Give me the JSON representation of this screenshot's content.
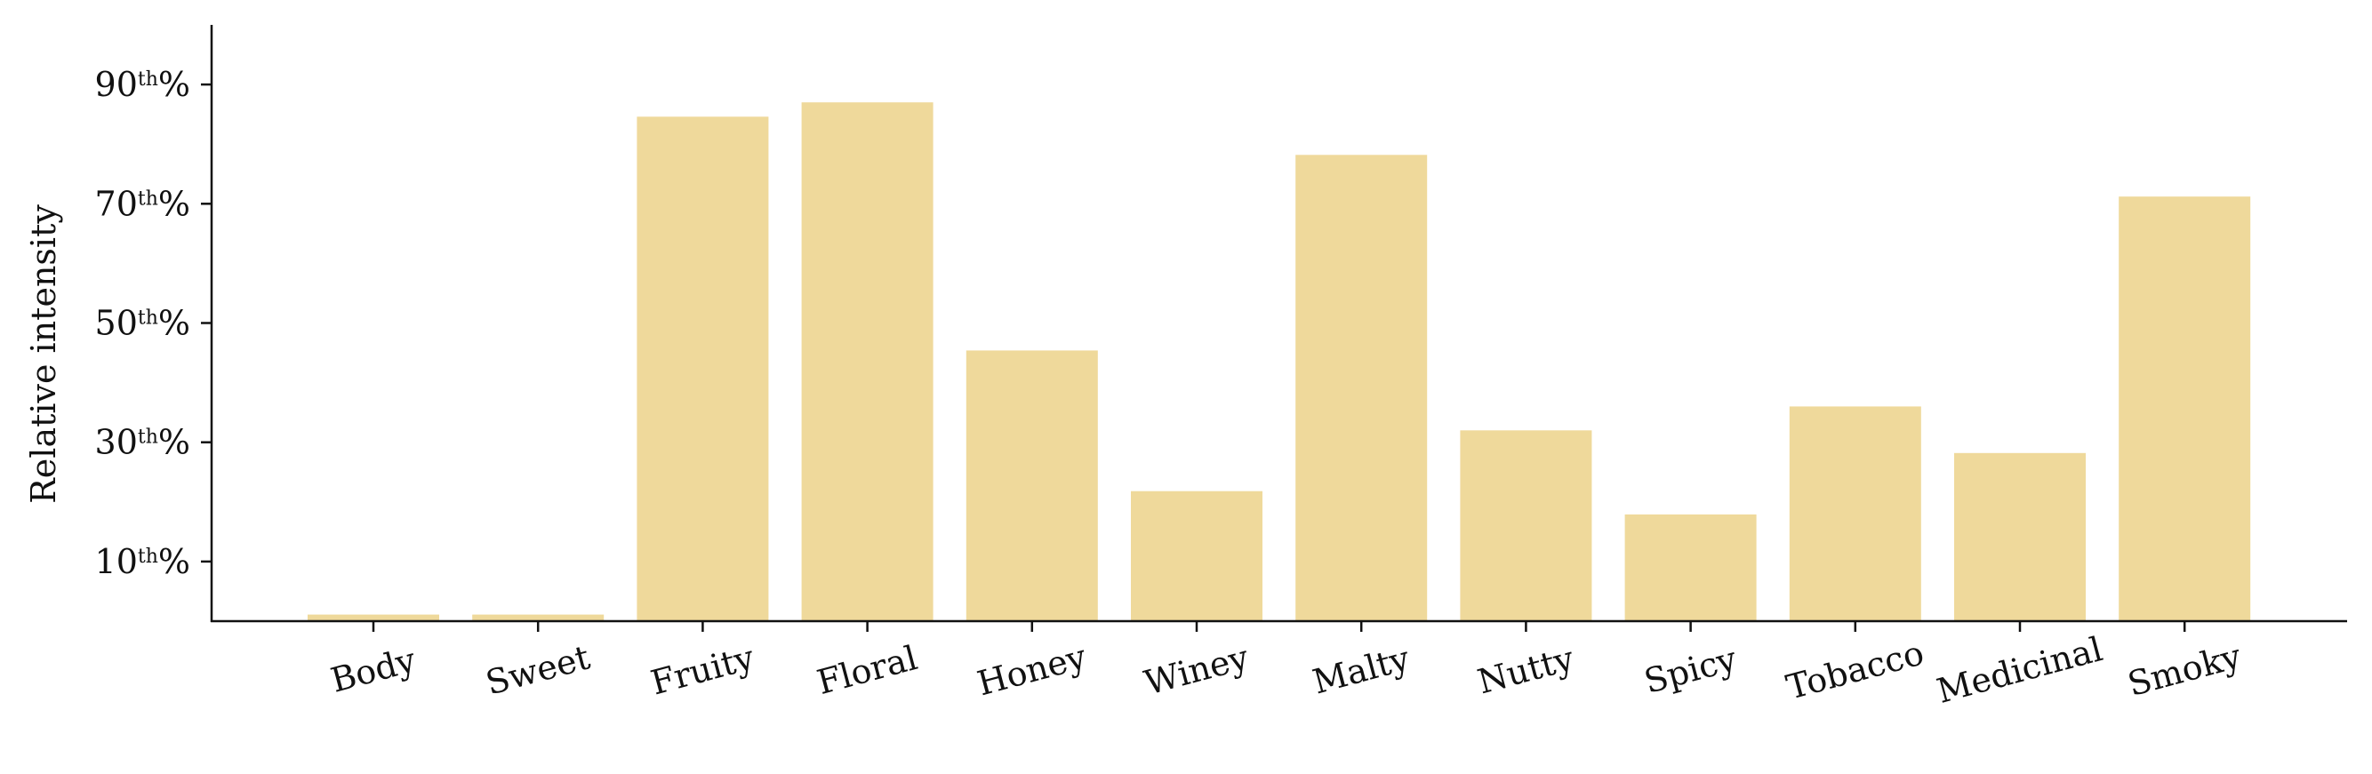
{
  "chart_data": {
    "type": "bar",
    "title": "",
    "xlabel": "",
    "ylabel": "Relative intensity",
    "categories": [
      "Body",
      "Sweet",
      "Fruity",
      "Floral",
      "Honey",
      "Winey",
      "Malty",
      "Nutty",
      "Spicy",
      "Tobacco",
      "Medicinal",
      "Smoky"
    ],
    "values": [
      1.1,
      1.1,
      84.6,
      87.0,
      45.4,
      21.8,
      78.2,
      32.0,
      17.9,
      36.0,
      28.2,
      71.2
    ],
    "ylim": [
      0,
      100
    ],
    "yticks": [
      10,
      30,
      50,
      70,
      90
    ],
    "ytick_labels": [
      {
        "base": "10",
        "sup": "th",
        "suffix": "%"
      },
      {
        "base": "30",
        "sup": "th",
        "suffix": "%"
      },
      {
        "base": "50",
        "sup": "th",
        "suffix": "%"
      },
      {
        "base": "70",
        "sup": "th",
        "suffix": "%"
      },
      {
        "base": "90",
        "sup": "th",
        "suffix": "%"
      }
    ],
    "bar_color": "#efd99b",
    "axis_color": "#111111",
    "grid": false,
    "legend": "none",
    "x_tick_rotation_deg": 15
  }
}
